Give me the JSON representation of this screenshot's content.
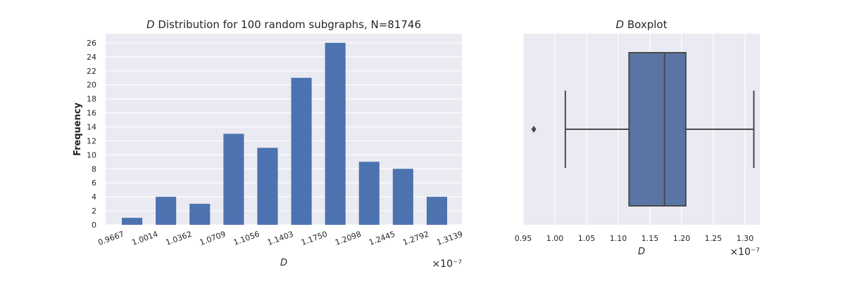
{
  "chart_data": [
    {
      "type": "bar",
      "title_var": "D",
      "title": "Distribution for 100 random subgraphs, N=81746",
      "xlabel": "D",
      "ylabel": "Frequency",
      "x_offset_label": "×10⁻⁷",
      "bin_edges": [
        "0.9667",
        "1.0014",
        "1.0362",
        "1.0709",
        "1.1056",
        "1.1403",
        "1.1750",
        "1.2098",
        "1.2445",
        "1.2792",
        "1.3139"
      ],
      "values": [
        1,
        4,
        3,
        13,
        11,
        21,
        26,
        9,
        8,
        4
      ],
      "y_ticks": [
        0,
        2,
        4,
        6,
        8,
        10,
        12,
        14,
        16,
        18,
        20,
        22,
        24,
        26
      ],
      "ylim": [
        0,
        27.3
      ],
      "grid": true,
      "bar_color": "#4c72b0",
      "background": "#eaeaf2"
    },
    {
      "type": "boxplot",
      "title_var": "D",
      "title": "Boxplot",
      "xlabel": "D",
      "x_offset_label": "×10⁻⁷",
      "x_ticks": [
        "0.95",
        "1.00",
        "1.05",
        "1.10",
        "1.15",
        "1.20",
        "1.25",
        "1.30"
      ],
      "xlim": [
        0.95,
        1.3233
      ],
      "whisker_low": 1.0165,
      "q1": 1.117,
      "median": 1.173,
      "q3": 1.2065,
      "whisker_high": 1.3139,
      "outliers": [
        0.9667
      ],
      "grid": true,
      "box_color": "#5975a4",
      "background": "#eaeaf2"
    }
  ]
}
